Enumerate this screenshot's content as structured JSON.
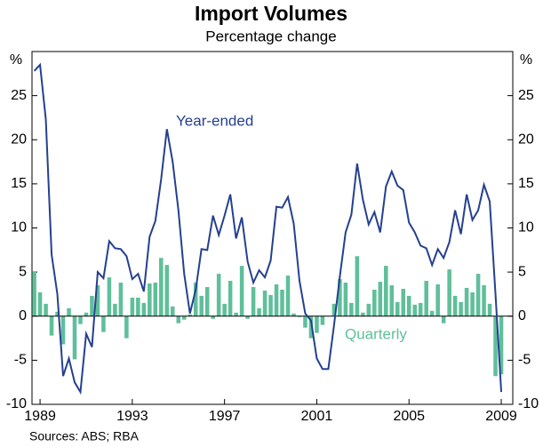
{
  "chart_data": {
    "type": "bar-line",
    "title": "Import Volumes",
    "subtitle": "Percentage change",
    "y_unit": "%",
    "y2_unit": "%",
    "source": "Sources: ABS; RBA",
    "x": [
      1988.75,
      1989.0,
      1989.25,
      1989.5,
      1989.75,
      1990.0,
      1990.25,
      1990.5,
      1990.75,
      1991.0,
      1991.25,
      1991.5,
      1991.75,
      1992.0,
      1992.25,
      1992.5,
      1992.75,
      1993.0,
      1993.25,
      1993.5,
      1993.75,
      1994.0,
      1994.25,
      1994.5,
      1994.75,
      1995.0,
      1995.25,
      1995.5,
      1995.75,
      1996.0,
      1996.25,
      1996.5,
      1996.75,
      1997.0,
      1997.25,
      1997.5,
      1997.75,
      1998.0,
      1998.25,
      1998.5,
      1998.75,
      1999.0,
      1999.25,
      1999.5,
      1999.75,
      2000.0,
      2000.25,
      2000.5,
      2000.75,
      2001.0,
      2001.25,
      2001.5,
      2001.75,
      2002.0,
      2002.25,
      2002.5,
      2002.75,
      2003.0,
      2003.25,
      2003.5,
      2003.75,
      2004.0,
      2004.25,
      2004.5,
      2004.75,
      2005.0,
      2005.25,
      2005.5,
      2005.75,
      2006.0,
      2006.25,
      2006.5,
      2006.75,
      2007.0,
      2007.25,
      2007.5,
      2007.75,
      2008.0,
      2008.25,
      2008.5,
      2008.75,
      2009.0
    ],
    "series": [
      {
        "name": "Quarterly",
        "type": "bar",
        "color": "#5fbf9a",
        "values": [
          5.1,
          2.7,
          1.4,
          -2.2,
          0.5,
          -3.2,
          0.9,
          -4.9,
          -0.9,
          0.4,
          2.3,
          3.5,
          -1.8,
          4.4,
          1.4,
          3.8,
          -2.5,
          2.1,
          2.1,
          1.5,
          3.7,
          3.8,
          6.6,
          5.8,
          1.1,
          -0.8,
          -0.4,
          0.2,
          3.8,
          2.3,
          3.3,
          -0.3,
          4.8,
          1.4,
          4.0,
          0.4,
          5.7,
          -0.3,
          3.3,
          0.9,
          2.9,
          2.4,
          3.6,
          3.0,
          4.6,
          0.3,
          -0.1,
          -1.3,
          -2.5,
          -1.9,
          -1.0,
          0.0,
          1.4,
          4.2,
          3.8,
          1.5,
          6.8,
          0.4,
          1.4,
          3.0,
          3.9,
          5.7,
          3.5,
          1.6,
          3.1,
          2.3,
          1.3,
          1.5,
          4.0,
          0.6,
          3.6,
          -0.8,
          5.3,
          2.3,
          1.6,
          3.2,
          2.7,
          4.8,
          3.5,
          1.4,
          -6.8,
          -6.6
        ]
      },
      {
        "name": "Year-ended",
        "type": "line",
        "color": "#25408f",
        "values": [
          27.8,
          28.5,
          22.3,
          7.0,
          2.5,
          -6.8,
          -4.8,
          -7.5,
          -8.6,
          -2.0,
          -3.5,
          5.0,
          4.3,
          8.5,
          7.7,
          7.6,
          6.8,
          4.2,
          4.8,
          2.8,
          9.0,
          10.8,
          15.5,
          21.2,
          17.5,
          12.0,
          4.8,
          0.3,
          3.0,
          7.6,
          7.5,
          11.4,
          9.2,
          11.4,
          13.8,
          8.8,
          11.2,
          6.2,
          3.8,
          5.2,
          4.4,
          6.3,
          12.4,
          12.3,
          13.5,
          10.5,
          4.0,
          0.3,
          -0.5,
          -4.8,
          -6.0,
          -6.0,
          -1.0,
          4.5,
          9.5,
          11.5,
          17.3,
          13.2,
          10.4,
          11.8,
          9.5,
          14.7,
          16.4,
          14.8,
          14.3,
          10.6,
          9.5,
          8.0,
          7.7,
          5.8,
          7.6,
          6.6,
          8.4,
          12.0,
          9.3,
          13.8,
          10.9,
          12.0,
          14.9,
          13.0,
          2.5,
          -8.6
        ]
      }
    ],
    "xlim": [
      1988.65,
      2009.5
    ],
    "xticks": [
      1989,
      1993,
      1997,
      2001,
      2005,
      2009
    ],
    "ylim": [
      -10,
      30
    ],
    "yticks": [
      -10,
      -5,
      0,
      5,
      10,
      15,
      20,
      25
    ],
    "y2lim": [
      -10,
      30
    ],
    "y2ticks": [
      -10,
      -5,
      0,
      5,
      10,
      15,
      20,
      25
    ],
    "grid": false
  }
}
